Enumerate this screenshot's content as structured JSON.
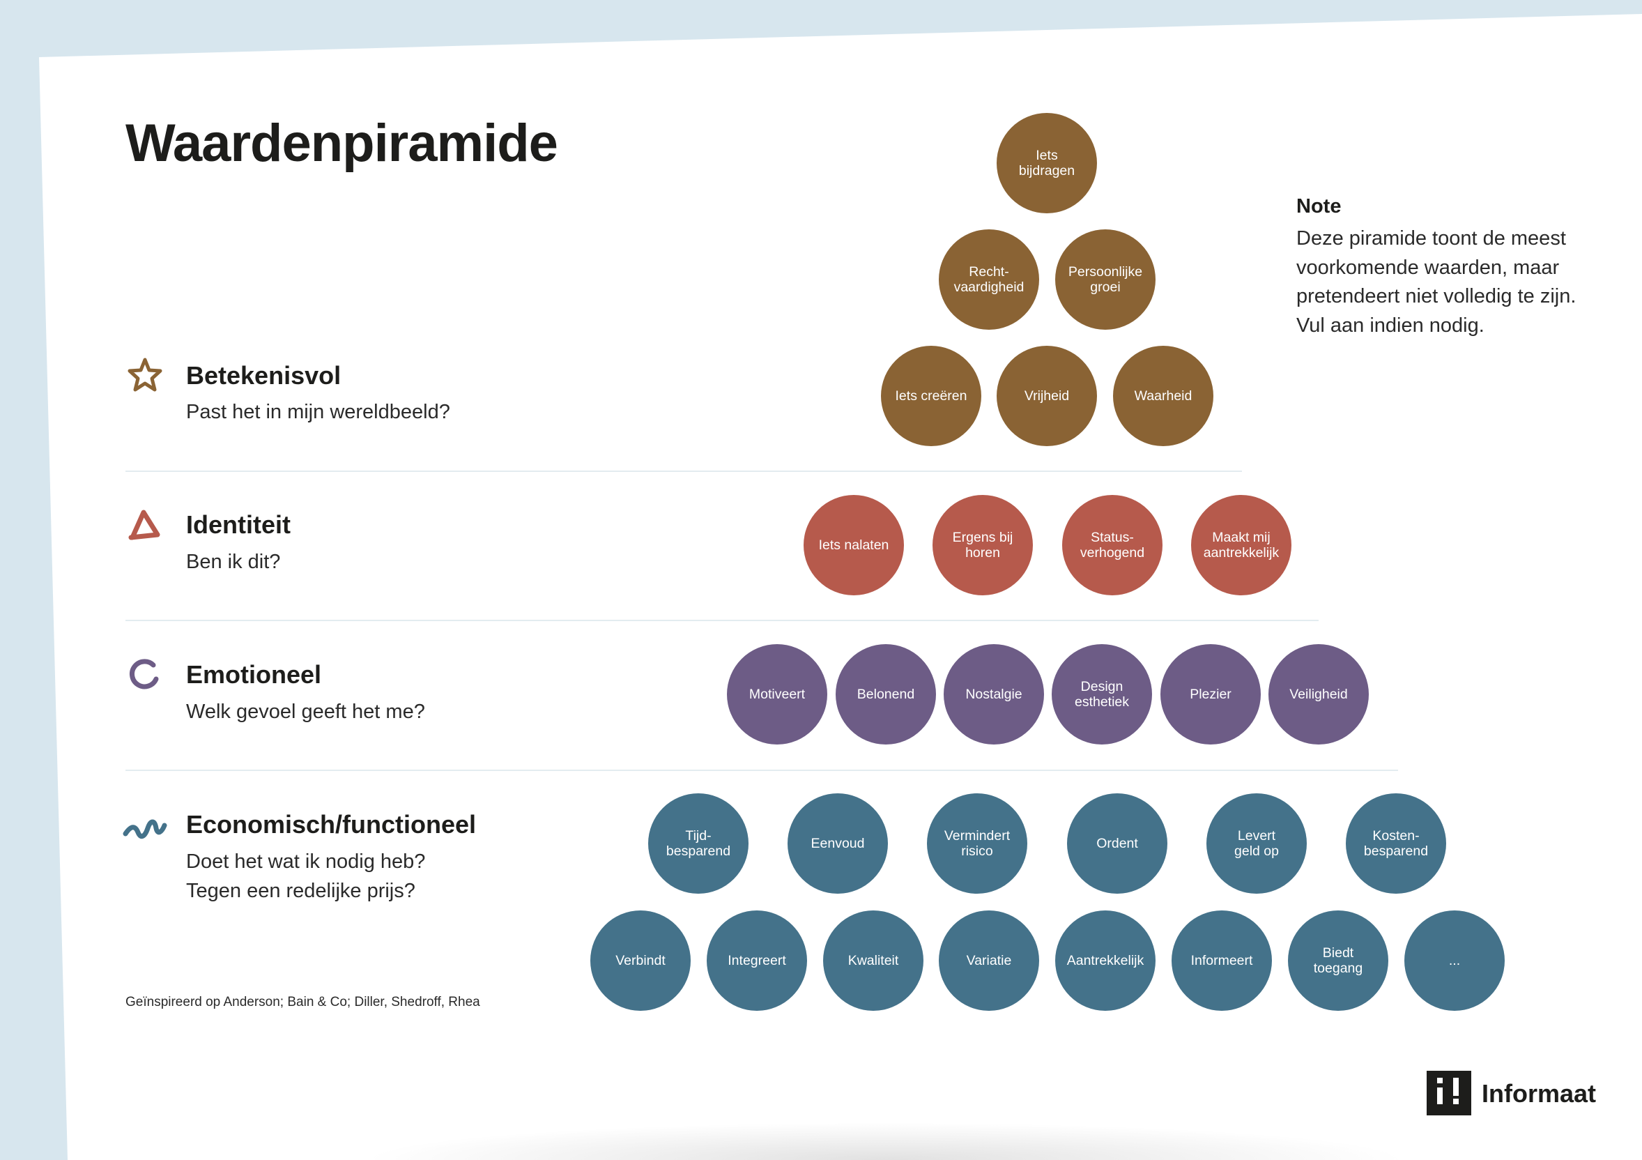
{
  "title": "Waardenpiramide",
  "note": {
    "heading": "Note",
    "lines": [
      "Deze piramide toont de meest",
      "voorkomende waarden, maar",
      "pretendeert niet volledig te zijn.",
      "Vul aan indien nodig."
    ]
  },
  "colors": {
    "betekenisvol": "#8a6334",
    "identiteit": "#b65a4c",
    "emotioneel": "#6d5c86",
    "functioneel": "#44728a"
  },
  "levels": [
    {
      "id": "betekenisvol",
      "icon": "star-icon",
      "title": "Betekenisvol",
      "questions": [
        "Past het in mijn wereldbeeld?"
      ],
      "values": [
        "Iets\nbijdragen",
        "Recht-\nvaardigheid",
        "Persoonlijke\ngroei",
        "Iets creëren",
        "Vrijheid",
        "Waarheid"
      ]
    },
    {
      "id": "identiteit",
      "icon": "triangle-icon",
      "title": "Identiteit",
      "questions": [
        "Ben ik dit?"
      ],
      "values": [
        "Iets nalaten",
        "Ergens bij\nhoren",
        "Status-\nverhogend",
        "Maakt mij\naantrekkelijk"
      ]
    },
    {
      "id": "emotioneel",
      "icon": "open-circle-icon",
      "title": "Emotioneel",
      "questions": [
        "Welk gevoel geeft het me?"
      ],
      "values": [
        "Motiveert",
        "Belonend",
        "Nostalgie",
        "Design\nesthetiek",
        "Plezier",
        "Veiligheid"
      ]
    },
    {
      "id": "functioneel",
      "icon": "wave-icon",
      "title": "Economisch/functioneel",
      "questions": [
        "Doet het wat ik nodig heb?",
        "Tegen een redelijke prijs?"
      ],
      "values": [
        "Tijd-\nbesparend",
        "Eenvoud",
        "Vermindert\nrisico",
        "Ordent",
        "Levert\ngeld op",
        "Kosten-\nbesparend",
        "Verbindt",
        "Integreert",
        "Kwaliteit",
        "Variatie",
        "Aantrekkelijk",
        "Informeert",
        "Biedt\ntoegang",
        "..."
      ]
    }
  ],
  "credit": "Geïnspireerd op Anderson; Bain & Co; Diller, Shedroff, Rhea",
  "brand": {
    "name": "Informaat",
    "mark": "i!"
  }
}
